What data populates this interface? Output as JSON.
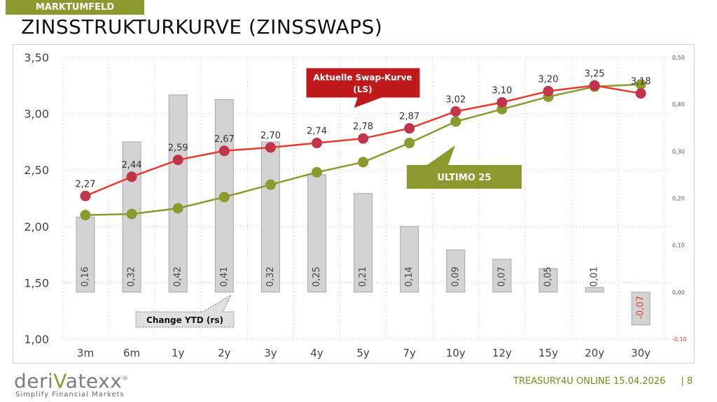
{
  "header": {
    "section_tag": "MARKTUMFELD",
    "title": "ZINSSTRUKTURKURVE (ZINSSWAPS)"
  },
  "footer": {
    "brand_pre": "deri",
    "brand_v": "V",
    "brand_post": "atexx",
    "brand_mark": "®",
    "tagline": "Simplify Financial Markets",
    "info": "TREASURY4U ONLINE 15.04.2026",
    "page": "| 8"
  },
  "colors": {
    "current_line": "#e8392d",
    "current_marker": "#c0354a",
    "ultimo_line": "#8b9a2e",
    "bar_fill": "#d3d3d3",
    "bar_stroke": "#a8a8a8",
    "negative_label": "#e8392d",
    "callout_red": "#c0191b",
    "callout_olive": "#8b9a2e"
  },
  "chart_data": {
    "type": "line",
    "categories": [
      "3m",
      "6m",
      "1y",
      "2y",
      "3y",
      "4y",
      "5y",
      "7y",
      "10y",
      "12y",
      "15y",
      "20y",
      "30y"
    ],
    "series": [
      {
        "name": "Aktuelle Swap-Kurve  (LS)",
        "axis": "left",
        "values": [
          2.27,
          2.44,
          2.59,
          2.67,
          2.7,
          2.74,
          2.78,
          2.87,
          3.02,
          3.1,
          3.2,
          3.25,
          3.18
        ]
      },
      {
        "name": "ULTIMO 25",
        "axis": "left",
        "values": [
          2.1,
          2.11,
          2.16,
          2.26,
          2.37,
          2.48,
          2.57,
          2.74,
          2.93,
          3.04,
          3.15,
          3.24,
          3.26
        ]
      },
      {
        "name": "Change YTD (rs)",
        "axis": "right",
        "type": "bar",
        "values": [
          0.16,
          0.32,
          0.42,
          0.41,
          0.32,
          0.25,
          0.21,
          0.14,
          0.09,
          0.07,
          0.05,
          0.01,
          -0.07
        ]
      }
    ],
    "current_labels": [
      "2,27",
      "2,44",
      "2,59",
      "2,67",
      "2,70",
      "2,74",
      "2,78",
      "2,87",
      "3,02",
      "3,10",
      "3,20",
      "3,25",
      "3,18"
    ],
    "bar_labels": [
      "0,16",
      "0,32",
      "0,42",
      "0,41",
      "0,32",
      "0,25",
      "0,21",
      "0,14",
      "0,09",
      "0,07",
      "0,05",
      "0,01",
      "-0,07"
    ],
    "y_left": {
      "range": [
        1.0,
        3.5
      ],
      "ticks": [
        1.0,
        1.5,
        2.0,
        2.5,
        3.0,
        3.5
      ],
      "tick_labels": [
        "1,00",
        "1,50",
        "2,00",
        "2,50",
        "3,00",
        "3,50"
      ]
    },
    "y_right": {
      "range": [
        -0.1,
        0.5
      ],
      "ticks": [
        -0.1,
        0.0,
        0.1,
        0.2,
        0.3,
        0.4,
        0.5
      ],
      "tick_labels": [
        "-0,10",
        "0,00",
        "0,10",
        "0,20",
        "0,30",
        "0,40",
        "0,50"
      ]
    },
    "grid": true,
    "callouts": {
      "current": "Aktuelle Swap-Kurve  (LS)",
      "ultimo": "ULTIMO 25",
      "change": "Change YTD (rs)"
    }
  }
}
